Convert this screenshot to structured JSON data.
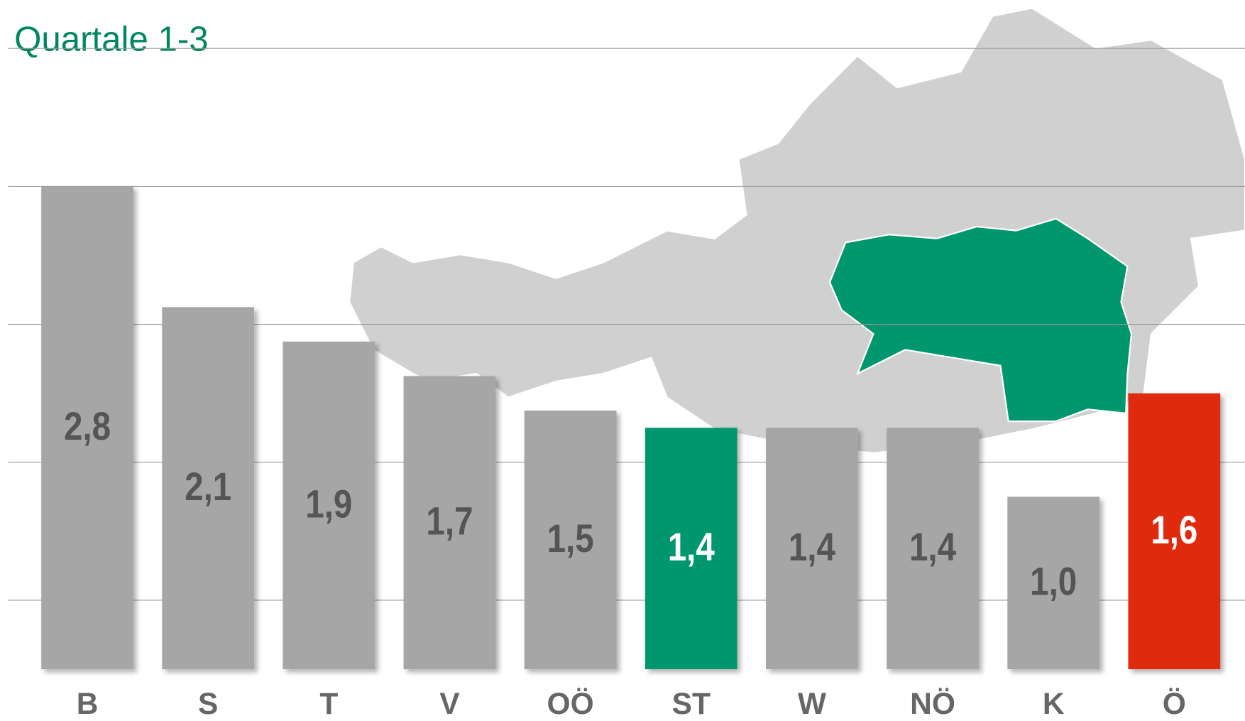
{
  "chart_data": {
    "type": "bar",
    "subtitle": "Quartale 1-3",
    "categories": [
      "B",
      "S",
      "T",
      "V",
      "OÖ",
      "ST",
      "W",
      "NÖ",
      "K",
      "Ö"
    ],
    "values": [
      2.8,
      2.1,
      1.9,
      1.7,
      1.5,
      1.4,
      1.4,
      1.4,
      1.0,
      1.6
    ],
    "value_labels": [
      "2,8",
      "2,1",
      "1,9",
      "1,7",
      "1,5",
      "1,4",
      "1,4",
      "1,4",
      "1,0",
      "1,6"
    ],
    "colors": [
      "#a6a6a6",
      "#a6a6a6",
      "#a6a6a6",
      "#a6a6a6",
      "#a6a6a6",
      "#00976e",
      "#a6a6a6",
      "#a6a6a6",
      "#a6a6a6",
      "#e02a0c"
    ],
    "ylim": [
      0,
      3.88
    ],
    "yticks": [
      0.4,
      1.2,
      2.0,
      2.8,
      3.6
    ],
    "grid": true
  }
}
